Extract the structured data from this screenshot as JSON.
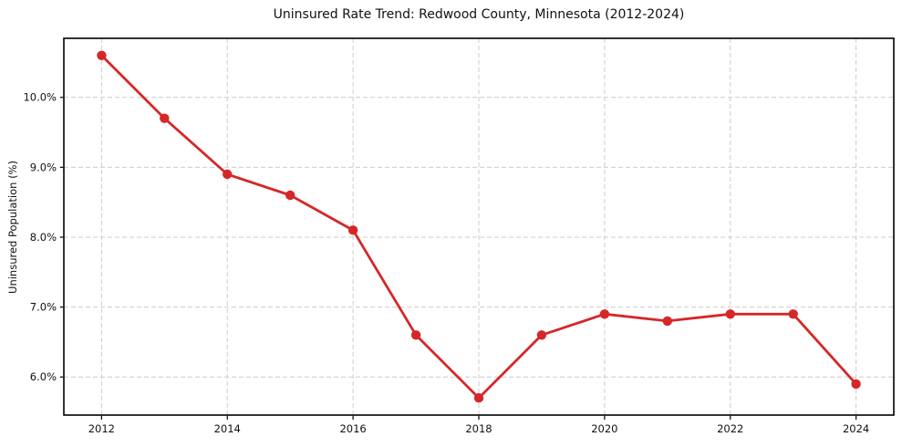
{
  "chart_data": {
    "type": "line",
    "title": "Uninsured Rate Trend: Redwood County, Minnesota (2012-2024)",
    "xlabel": "",
    "ylabel": "Uninsured Population (%)",
    "x": [
      2012,
      2013,
      2014,
      2015,
      2016,
      2017,
      2018,
      2019,
      2020,
      2021,
      2022,
      2023,
      2024
    ],
    "values": [
      10.6,
      9.7,
      8.9,
      8.6,
      8.1,
      6.6,
      5.7,
      6.6,
      6.9,
      6.8,
      6.9,
      6.9,
      5.9
    ],
    "x_tick_labels": [
      "2012",
      "2014",
      "2016",
      "2018",
      "2020",
      "2022",
      "2024"
    ],
    "x_tick_values": [
      2012,
      2014,
      2016,
      2018,
      2020,
      2022,
      2024
    ],
    "y_tick_labels": [
      "6.0%",
      "7.0%",
      "8.0%",
      "9.0%",
      "10.0%"
    ],
    "y_tick_values": [
      6.0,
      7.0,
      8.0,
      9.0,
      10.0
    ],
    "xlim": [
      2011.4,
      2024.6
    ],
    "ylim": [
      5.455,
      10.845
    ],
    "grid": true,
    "grid_style": "dashed",
    "legend": "none",
    "line_color": "#d62728",
    "marker": "circle"
  }
}
